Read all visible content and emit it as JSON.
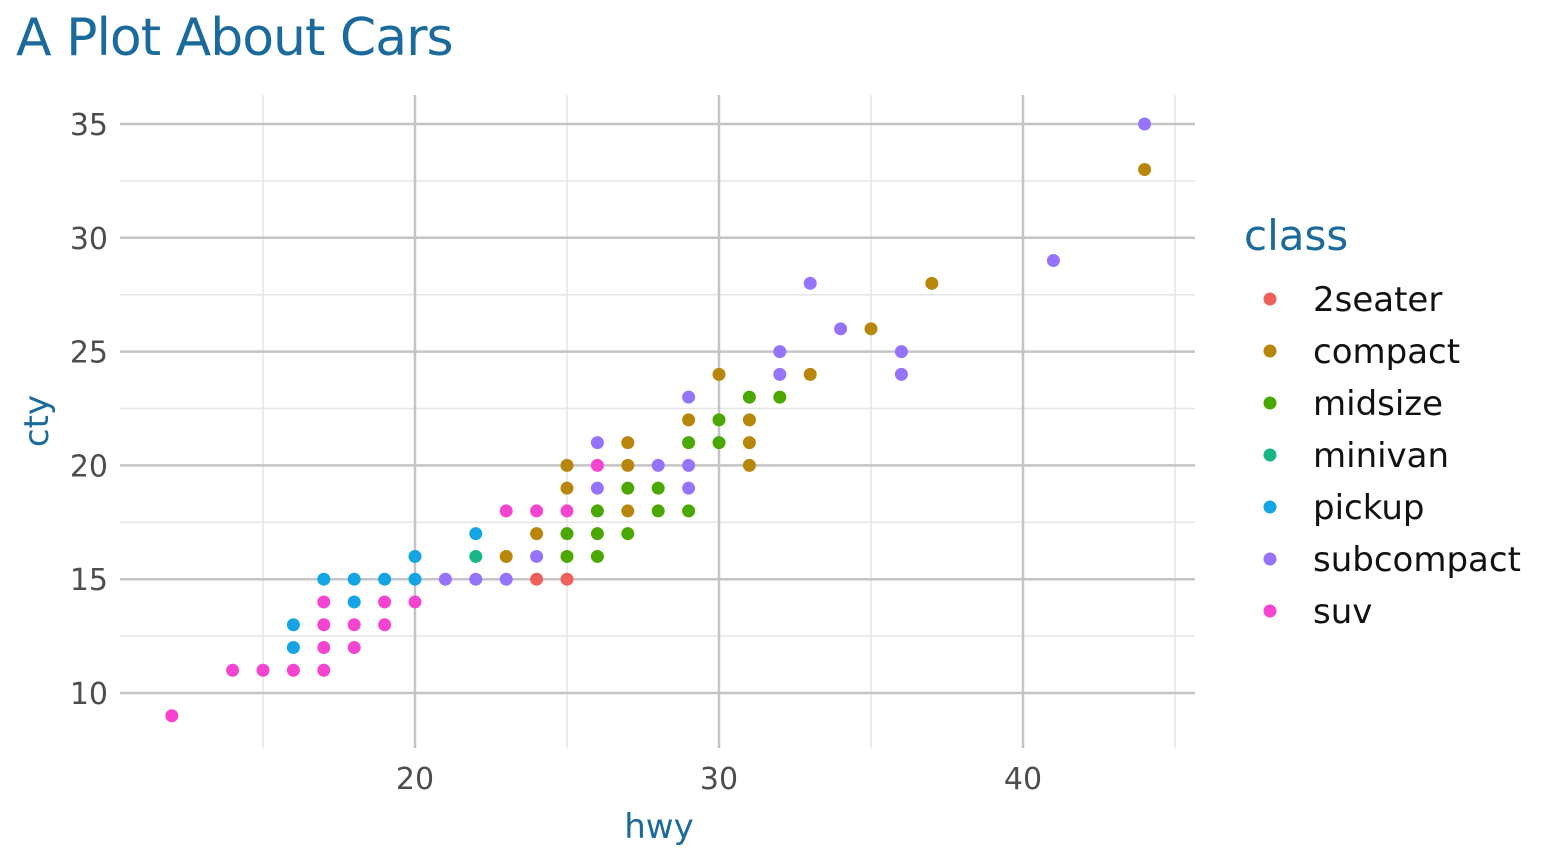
{
  "chart_data": {
    "type": "scatter",
    "title": "A Plot About Cars",
    "xlabel": "hwy",
    "ylabel": "cty",
    "xlim": [
      11,
      45
    ],
    "ylim": [
      8.3,
      36.3
    ],
    "xticks": [
      20,
      30,
      40
    ],
    "yticks": [
      10,
      15,
      20,
      25,
      30,
      35
    ],
    "grid": true,
    "legend": {
      "title": "class",
      "position": "right"
    },
    "classes": [
      {
        "name": "2seater",
        "color": "#F0605A"
      },
      {
        "name": "compact",
        "color": "#B8860B"
      },
      {
        "name": "midsize",
        "color": "#4AA800"
      },
      {
        "name": "minivan",
        "color": "#19B586"
      },
      {
        "name": "pickup",
        "color": "#15A5E4"
      },
      {
        "name": "subcompact",
        "color": "#9573FA"
      },
      {
        "name": "suv",
        "color": "#F545D0"
      }
    ],
    "point_fields": [
      "hwy",
      "cty",
      "class_index"
    ],
    "points": [
      [
        12,
        9,
        6
      ],
      [
        14,
        11,
        6
      ],
      [
        15,
        11,
        6
      ],
      [
        16,
        11,
        6
      ],
      [
        17,
        11,
        6
      ],
      [
        16,
        12,
        4
      ],
      [
        17,
        12,
        6
      ],
      [
        18,
        12,
        6
      ],
      [
        16,
        13,
        4
      ],
      [
        17,
        13,
        6
      ],
      [
        18,
        13,
        6
      ],
      [
        19,
        13,
        6
      ],
      [
        17,
        14,
        6
      ],
      [
        18,
        14,
        4
      ],
      [
        19,
        14,
        6
      ],
      [
        20,
        14,
        6
      ],
      [
        17,
        15,
        4
      ],
      [
        18,
        15,
        4
      ],
      [
        19,
        15,
        4
      ],
      [
        20,
        15,
        4
      ],
      [
        21,
        15,
        5
      ],
      [
        22,
        15,
        5
      ],
      [
        23,
        15,
        5
      ],
      [
        24,
        15,
        0
      ],
      [
        25,
        15,
        0
      ],
      [
        20,
        16,
        4
      ],
      [
        22,
        16,
        3
      ],
      [
        23,
        16,
        1
      ],
      [
        24,
        16,
        5
      ],
      [
        25,
        16,
        2
      ],
      [
        26,
        16,
        2
      ],
      [
        22,
        17,
        4
      ],
      [
        24,
        17,
        1
      ],
      [
        25,
        17,
        2
      ],
      [
        26,
        17,
        2
      ],
      [
        27,
        17,
        2
      ],
      [
        23,
        18,
        6
      ],
      [
        24,
        18,
        6
      ],
      [
        25,
        18,
        6
      ],
      [
        26,
        18,
        2
      ],
      [
        27,
        18,
        1
      ],
      [
        28,
        18,
        2
      ],
      [
        29,
        18,
        2
      ],
      [
        25,
        19,
        1
      ],
      [
        26,
        19,
        5
      ],
      [
        27,
        19,
        2
      ],
      [
        28,
        19,
        2
      ],
      [
        29,
        19,
        5
      ],
      [
        25,
        20,
        1
      ],
      [
        26,
        20,
        6
      ],
      [
        27,
        20,
        1
      ],
      [
        28,
        20,
        5
      ],
      [
        29,
        20,
        5
      ],
      [
        31,
        20,
        1
      ],
      [
        26,
        21,
        5
      ],
      [
        27,
        21,
        1
      ],
      [
        29,
        21,
        2
      ],
      [
        30,
        21,
        2
      ],
      [
        31,
        21,
        1
      ],
      [
        29,
        22,
        1
      ],
      [
        30,
        22,
        2
      ],
      [
        31,
        22,
        1
      ],
      [
        29,
        23,
        5
      ],
      [
        31,
        23,
        2
      ],
      [
        32,
        23,
        2
      ],
      [
        30,
        24,
        1
      ],
      [
        32,
        24,
        5
      ],
      [
        33,
        24,
        1
      ],
      [
        36,
        24,
        5
      ],
      [
        32,
        25,
        5
      ],
      [
        36,
        25,
        5
      ],
      [
        34,
        26,
        5
      ],
      [
        35,
        26,
        1
      ],
      [
        33,
        28,
        5
      ],
      [
        37,
        28,
        1
      ],
      [
        41,
        29,
        5
      ],
      [
        44,
        33,
        1
      ],
      [
        44,
        35,
        5
      ]
    ]
  }
}
